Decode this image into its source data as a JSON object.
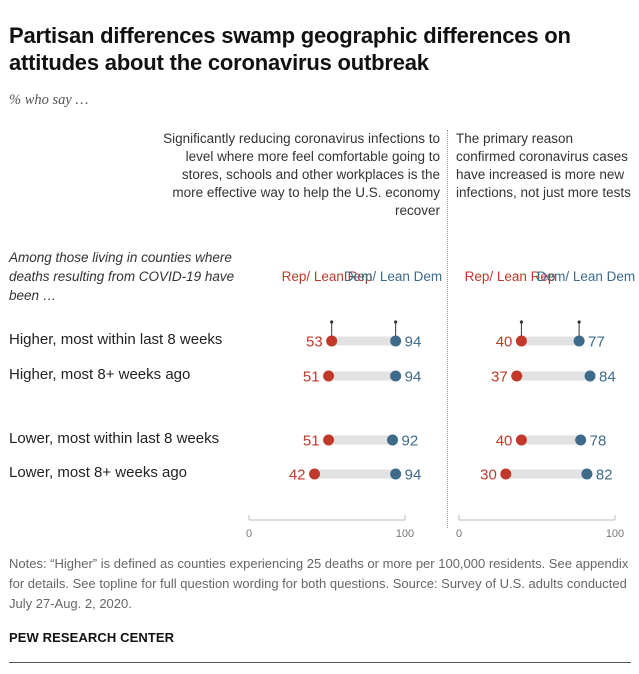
{
  "title": "Partisan differences swamp geographic differences on attitudes about the coronavirus outbreak",
  "subtitle": "% who say …",
  "colors": {
    "rep": "#c0392b",
    "dem": "#3e6b8a",
    "track": "#e2e2e2"
  },
  "group_label": "Among those living in counties where deaths resulting from COVID-19 have been …",
  "series_labels": {
    "rep": "Rep/ Lean Rep",
    "dem": "Dem/ Lean Dem"
  },
  "chart_data": [
    {
      "type": "dot",
      "title": "Significantly reducing coronavirus infections to level where more feel comfortable going to stores, schools and other workplaces is the more effective way to help the U.S. economy recover",
      "xlim": [
        0,
        100
      ],
      "ticks": [
        "0",
        "100"
      ],
      "categories": [
        "Higher, most within last 8 weeks",
        "Higher, most 8+ weeks ago",
        "Lower, most within last 8 weeks",
        "Lower, most 8+ weeks ago"
      ],
      "series": [
        {
          "name": "Rep/ Lean Rep",
          "values": [
            53,
            51,
            51,
            42
          ]
        },
        {
          "name": "Dem/ Lean Dem",
          "values": [
            94,
            94,
            92,
            94
          ]
        }
      ]
    },
    {
      "type": "dot",
      "title": "The primary reason confirmed coronavirus cases have increased is more new infections, not just more tests",
      "xlim": [
        0,
        100
      ],
      "ticks": [
        "0",
        "100"
      ],
      "categories": [
        "Higher, most within last 8 weeks",
        "Higher, most 8+ weeks ago",
        "Lower, most within last 8 weeks",
        "Lower, most 8+ weeks ago"
      ],
      "series": [
        {
          "name": "Rep/ Lean Rep",
          "values": [
            40,
            37,
            40,
            30
          ]
        },
        {
          "name": "Dem/ Lean Dem",
          "values": [
            77,
            84,
            78,
            82
          ]
        }
      ]
    }
  ],
  "notes": "Notes: “Higher” is defined as counties experiencing 25 deaths or more per 100,000 residents. See appendix for details. See topline for full question wording for both questions. Source: Survey of U.S. adults conducted July 27-Aug. 2, 2020.",
  "brand": "PEW RESEARCH CENTER"
}
